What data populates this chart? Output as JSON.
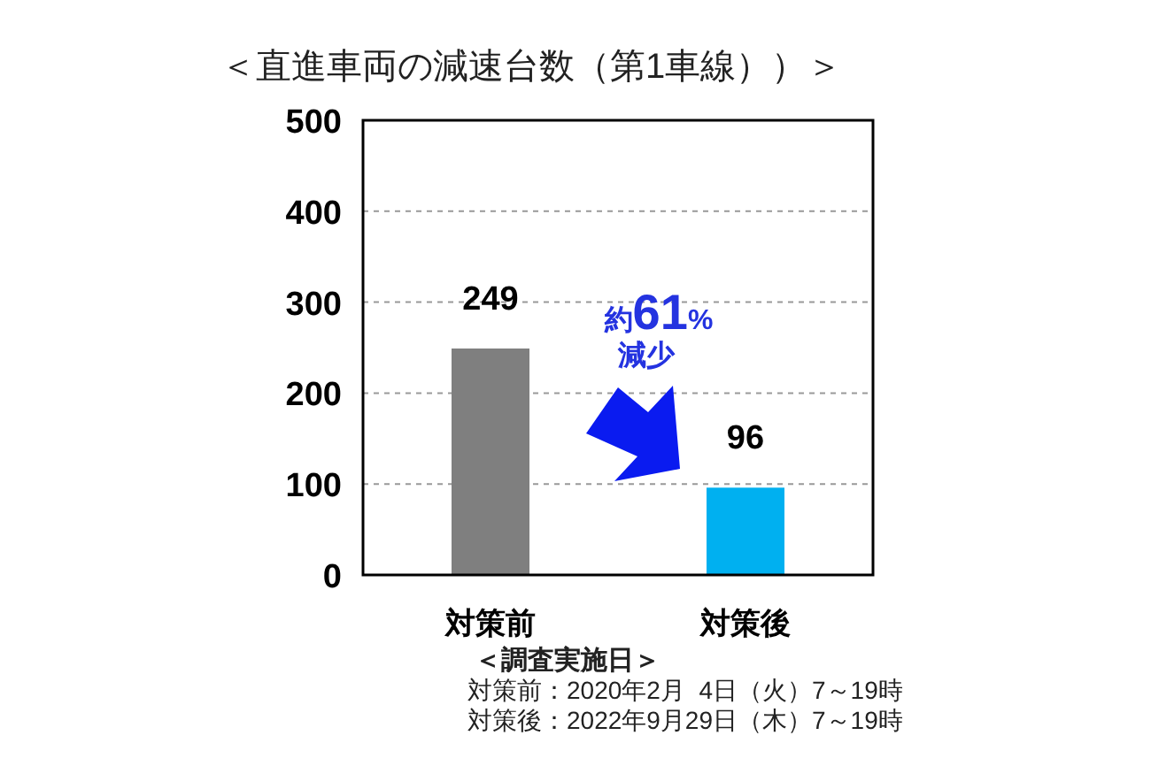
{
  "chart_data": {
    "type": "bar",
    "title": "＜直進車両の減速台数（第1車線））＞",
    "categories": [
      "対策前",
      "対策後"
    ],
    "values": [
      249,
      96
    ],
    "colors": [
      "#7f7f7f",
      "#00b0f0"
    ],
    "ylim": [
      0,
      500
    ],
    "yticks": [
      0,
      100,
      200,
      300,
      400,
      500
    ],
    "grid": "y",
    "data_labels": true,
    "annotations": [
      "約61%\n減少",
      "＜調査実施日＞",
      "対策前：2020年2月  4日（火）7～19時",
      "対策後：2022年9月29日（木）7～19時"
    ]
  }
}
